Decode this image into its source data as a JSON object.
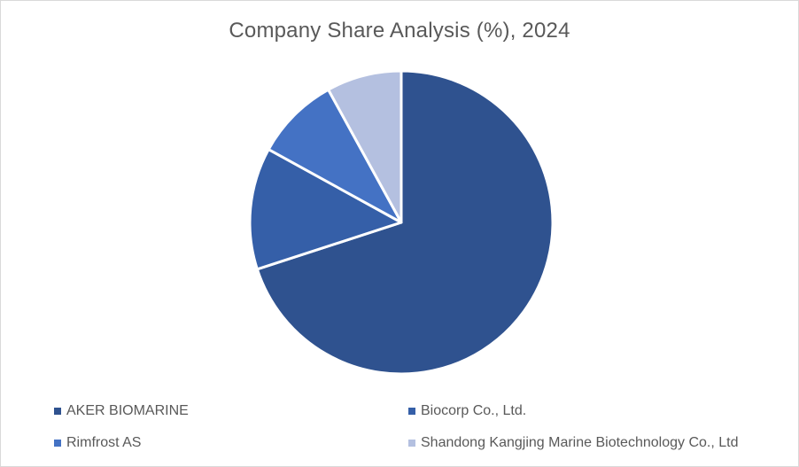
{
  "chart_data": {
    "type": "pie",
    "title": "Company Share Analysis (%), 2024",
    "categories": [
      "AKER BIOMARINE",
      "Biocorp Co., Ltd.",
      "Rimfrost AS",
      "Shandong Kangjing Marine Biotechnology Co., Ltd"
    ],
    "values": [
      70,
      13,
      9,
      8
    ],
    "colors": [
      "#2F528F",
      "#355FA8",
      "#4472C4",
      "#B4C0E0"
    ],
    "legend_position": "bottom",
    "start_angle_deg": 0,
    "direction": "clockwise"
  }
}
